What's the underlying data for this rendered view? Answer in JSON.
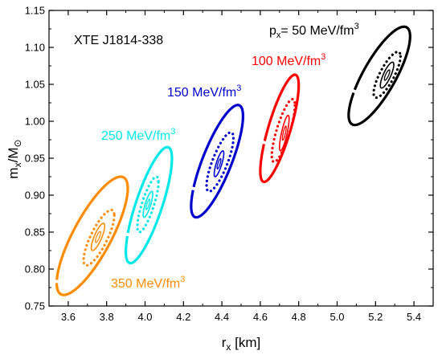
{
  "chart_data": {
    "type": "contour",
    "title": "XTE J1814-338",
    "xlabel": {
      "main": "r",
      "sub": "x",
      "unit": " [km]"
    },
    "ylabel": {
      "main": "m",
      "sub": "x",
      "slash": "/M",
      "sun": "⊙"
    },
    "xlim": [
      3.5,
      5.5
    ],
    "ylim": [
      0.75,
      1.15
    ],
    "xticks": [
      3.6,
      3.8,
      4.0,
      4.2,
      4.4,
      4.6,
      4.8,
      5.0,
      5.2,
      5.4
    ],
    "xtick_labels": [
      "3.6",
      "3.8",
      "4.0",
      "4.2",
      "4.4",
      "4.6",
      "4.8",
      "5.0",
      "5.2",
      "5.4"
    ],
    "yticks": [
      0.75,
      0.8,
      0.85,
      0.9,
      0.95,
      1.0,
      1.05,
      1.1,
      1.15
    ],
    "ytick_labels": [
      "0.75",
      "0.80",
      "0.85",
      "0.90",
      "0.95",
      "1.00",
      "1.05",
      "1.10",
      "1.15"
    ],
    "series": [
      {
        "name": "50 MeV/fm3",
        "label": {
          "prefix": "p",
          "sub": "x",
          "mid": "= 50 MeV/fm",
          "sup": "3"
        },
        "color": "#000000",
        "center": [
          5.26,
          1.062
        ],
        "outer": {
          "x": [
            5.06,
            5.38
          ],
          "y": [
            0.995,
            1.128
          ]
        },
        "dotted": {
          "x": [
            5.19,
            5.33
          ],
          "y": [
            1.032,
            1.094
          ]
        },
        "inner": {
          "x": [
            5.225,
            5.295
          ],
          "y": [
            1.045,
            1.08
          ]
        }
      },
      {
        "name": "100 MeV/fm3",
        "label": {
          "text": "100 MeV/fm",
          "sup": "3"
        },
        "color": "#ff0000",
        "center": [
          4.72,
          0.985
        ],
        "outer": {
          "x": [
            4.6,
            4.8
          ],
          "y": [
            0.918,
            1.063
          ]
        },
        "dotted": {
          "x": [
            4.66,
            4.78
          ],
          "y": [
            0.945,
            1.03
          ]
        },
        "inner": {
          "x": [
            4.7,
            4.75
          ],
          "y": [
            0.96,
            1.008
          ]
        }
      },
      {
        "name": "150 MeV/fm3",
        "label": {
          "text": "150 MeV/fm",
          "sup": "3"
        },
        "color": "#0000cc",
        "center": [
          4.38,
          0.945
        ],
        "outer": {
          "x": [
            4.24,
            4.51
          ],
          "y": [
            0.87,
            1.022
          ]
        },
        "dotted": {
          "x": [
            4.32,
            4.46
          ],
          "y": [
            0.905,
            0.985
          ]
        },
        "inner": {
          "x": [
            4.36,
            4.41
          ],
          "y": [
            0.925,
            0.96
          ]
        }
      },
      {
        "name": "250 MeV/fm3",
        "label": {
          "text": "250 MeV/fm",
          "sup": "3"
        },
        "color": "#00e8e8",
        "center": [
          4.02,
          0.885
        ],
        "outer": {
          "x": [
            3.9,
            4.14
          ],
          "y": [
            0.808,
            0.965
          ]
        },
        "dotted": {
          "x": [
            3.96,
            4.07
          ],
          "y": [
            0.85,
            0.925
          ]
        },
        "inner": {
          "x": [
            3.99,
            4.04
          ],
          "y": [
            0.87,
            0.905
          ]
        }
      },
      {
        "name": "350 MeV/fm3",
        "label": {
          "text": "350 MeV/fm",
          "sup": "3"
        },
        "color": "#ff8c00",
        "center": [
          3.76,
          0.845
        ],
        "outer": {
          "x": [
            3.54,
            3.91
          ],
          "y": [
            0.765,
            0.925
          ]
        },
        "dotted": {
          "x": [
            3.68,
            3.84
          ],
          "y": [
            0.805,
            0.88
          ]
        },
        "inner": {
          "x": [
            3.72,
            3.79
          ],
          "y": [
            0.825,
            0.862
          ]
        }
      }
    ]
  }
}
